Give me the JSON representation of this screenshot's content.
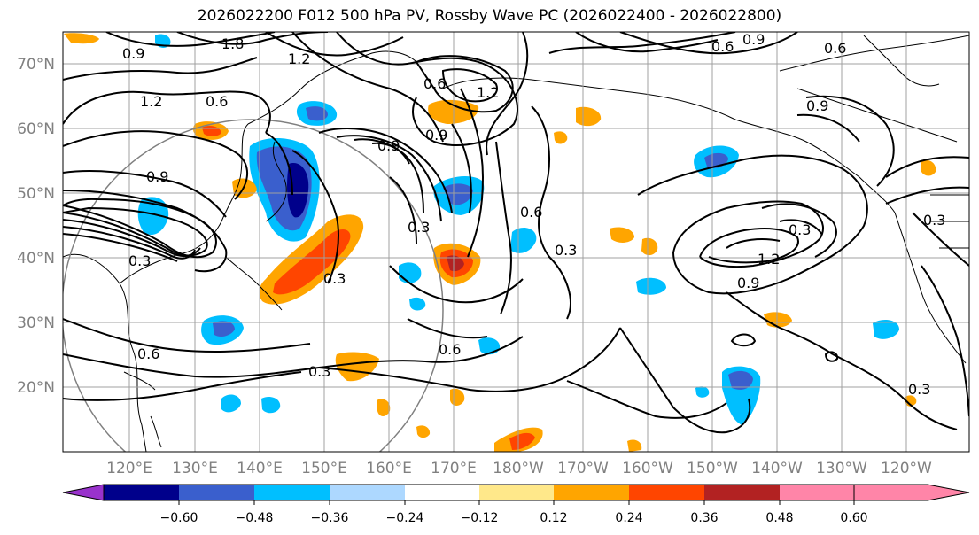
{
  "title": "2026022200 F012 500 hPa PV, Rossby Wave PC (2026022400 - 2026022800)",
  "lat_labels": [
    "70°N",
    "60°N",
    "50°N",
    "40°N",
    "30°N",
    "20°N"
  ],
  "lon_labels": [
    "120°E",
    "130°E",
    "140°E",
    "150°E",
    "160°E",
    "170°E",
    "180°W",
    "170°W",
    "160°W",
    "150°W",
    "140°W",
    "130°W",
    "120°W"
  ],
  "colorbar": {
    "colors": [
      "#9932cc",
      "#00008b",
      "#3a5fcd",
      "#00bfff",
      "#add8ff",
      "#ffffff",
      "#ffe88a",
      "#ffa500",
      "#ff4500",
      "#b22222",
      "#ff85a8"
    ],
    "tick_labels": [
      "−0.60",
      "−0.48",
      "−0.36",
      "−0.24",
      "−0.12",
      "0.12",
      "0.24",
      "0.36",
      "0.48",
      "0.60"
    ]
  },
  "contour_labels": [
    "1.8",
    "0.9",
    "1.2",
    "0.6",
    "1.2",
    "0.9",
    "0.3",
    "0.6",
    "0.9",
    "0.6",
    "0.9",
    "1.2",
    "0.9",
    "0.6",
    "0.3",
    "0.3",
    "0.6",
    "0.3",
    "0.9",
    "1.2",
    "0.9",
    "0.3",
    "0.3",
    "0.3",
    "0.6",
    "0.6",
    "0.3"
  ],
  "colors": {
    "contour": "#000000",
    "grid": "#a0a0a0",
    "axis_label": "#808080"
  }
}
